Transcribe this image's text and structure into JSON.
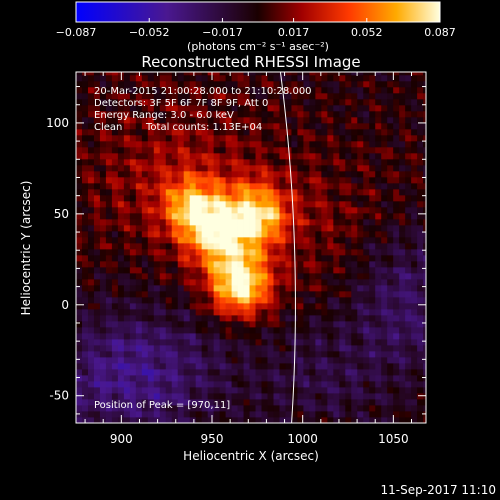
{
  "chart_data": {
    "type": "heatmap",
    "title": "Reconstructed RHESSI Image",
    "xlabel": "Heliocentric X (arcsec)",
    "ylabel": "Heliocentric Y (arcsec)",
    "xlim": [
      875,
      1068
    ],
    "ylim": [
      -65,
      128
    ],
    "x_ticks": [
      900,
      950,
      1000,
      1050
    ],
    "y_ticks": [
      -50,
      0,
      50,
      100
    ],
    "colorbar": {
      "ticks": [
        -0.087,
        -0.052,
        -0.017,
        0.017,
        0.052,
        0.087
      ],
      "tick_labels": [
        "−0.087",
        "−0.052",
        "−0.017",
        "0.017",
        "0.052",
        "0.087"
      ],
      "range": [
        -0.087,
        0.087
      ],
      "unit_label": "(photons cm⁻² s⁻¹ asec⁻²)"
    },
    "annotations": {
      "time_range": "20-Mar-2015 21:00:28.000 to 21:10:28.000",
      "detectors": "Detectors: 3F 5F 6F 7F 8F 9F, Att 0",
      "energy": "Energy Range: 3.0 - 6.0 keV",
      "clean": "Clean",
      "counts": "Total counts: 1.13E+04",
      "peak": "Position of Peak = [970,11]"
    },
    "sources": [
      {
        "x": 964,
        "y": 10,
        "peak": 0.087
      },
      {
        "x": 973,
        "y": 48,
        "peak": 0.07
      },
      {
        "x": 938,
        "y": 52,
        "peak": 0.06
      },
      {
        "x": 952,
        "y": 36,
        "peak": 0.06
      }
    ],
    "limb_arcsec": 996,
    "footer_date": "11-Sep-2017 11:10"
  }
}
